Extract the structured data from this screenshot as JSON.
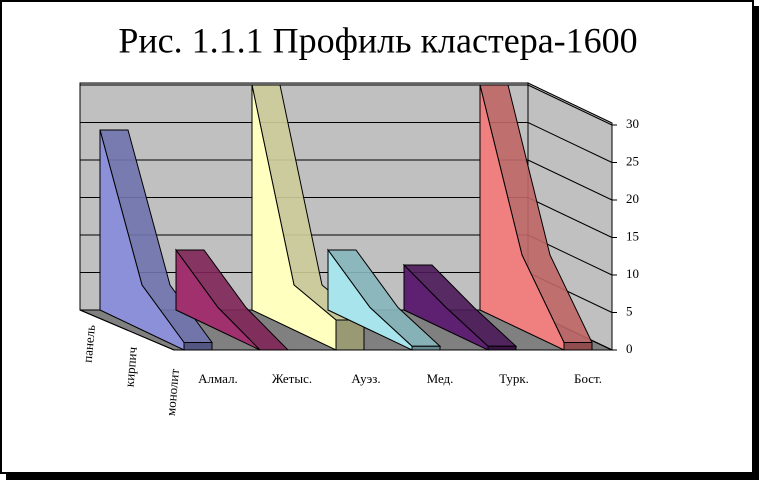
{
  "chart_data": {
    "type": "area3d",
    "title": "Рис. 1.1.1 Профиль кластера-1600",
    "categories": [
      "панель",
      "кирпич",
      "монолит"
    ],
    "series": [
      {
        "name": "Алмал.",
        "color": "#8c90d8",
        "values": [
          24,
          6,
          1
        ]
      },
      {
        "name": "Жетыс.",
        "color": "#a0306e",
        "values": [
          8,
          3,
          0
        ]
      },
      {
        "name": "Ауэз.",
        "color": "#ffffc0",
        "values": [
          30,
          6,
          4
        ]
      },
      {
        "name": "Мед.",
        "color": "#a8e4ec",
        "values": [
          8,
          3,
          0.5
        ]
      },
      {
        "name": "Турк.",
        "color": "#5e2070",
        "values": [
          6,
          3,
          0.5
        ]
      },
      {
        "name": "Бост.",
        "color": "#f08080",
        "values": [
          30,
          10,
          1
        ]
      }
    ],
    "ylim": [
      0,
      30
    ],
    "yticks": [
      0,
      5,
      10,
      15,
      20,
      25,
      30
    ],
    "grid": true
  }
}
